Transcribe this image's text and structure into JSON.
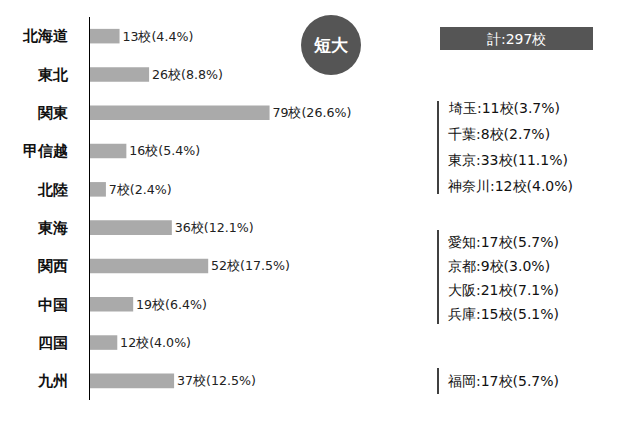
{
  "chart_data": {
    "type": "bar",
    "orientation": "horizontal",
    "categories": [
      "北海道",
      "東北",
      "関東",
      "甲信越",
      "北陸",
      "東海",
      "関西",
      "中国",
      "四国",
      "九州"
    ],
    "values": [
      13,
      26,
      79,
      16,
      7,
      36,
      52,
      19,
      12,
      37
    ],
    "value_labels": [
      "13校(4.4%)",
      "26校(8.8%)",
      "79校(26.6%)",
      "16校(5.4%)",
      "7校(2.4%)",
      "36校(12.1%)",
      "52校(17.5%)",
      "19校(6.4%)",
      "12校(4.0%)",
      "37校(12.5%)"
    ],
    "data_labels": true,
    "color": "#aaaaaa",
    "tick_labels": "y",
    "grid": false
  },
  "badge": "短大",
  "total": "計:297校",
  "breakdowns": [
    [
      "埼玉:11校(3.7%)",
      "千葉:8校(2.7%)",
      "東京:33校(11.1%)",
      "神奈川:12校(4.0%)"
    ],
    [
      "愛知:17校(5.7%)",
      "京都:9校(3.0%)",
      "大阪:21校(7.1%)",
      "兵庫:15校(5.1%)"
    ],
    [
      "福岡:17校(5.7%)"
    ]
  ]
}
